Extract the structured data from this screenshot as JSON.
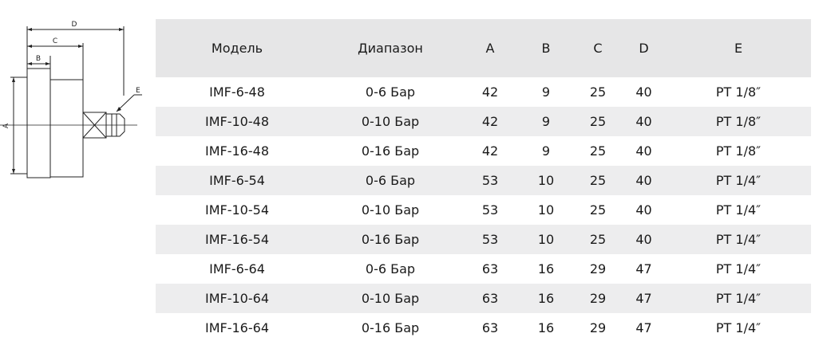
{
  "drawing": {
    "labels": {
      "a": "A",
      "b": "B",
      "c": "C",
      "d": "D",
      "e": "E"
    }
  },
  "table": {
    "headers": [
      "Модель",
      "Диапазон",
      "A",
      "B",
      "C",
      "D",
      "E"
    ],
    "rows": [
      [
        "IMF-6-48",
        "0-6 Бар",
        "42",
        "9",
        "25",
        "40",
        "PT 1/8″"
      ],
      [
        "IMF-10-48",
        "0-10 Бар",
        "42",
        "9",
        "25",
        "40",
        "PT 1/8″"
      ],
      [
        "IMF-16-48",
        "0-16 Бар",
        "42",
        "9",
        "25",
        "40",
        "PT 1/8″"
      ],
      [
        "IMF-6-54",
        "0-6 Бар",
        "53",
        "10",
        "25",
        "40",
        "PT 1/4″"
      ],
      [
        "IMF-10-54",
        "0-10 Бар",
        "53",
        "10",
        "25",
        "40",
        "PT 1/4″"
      ],
      [
        "IMF-16-54",
        "0-16 Бар",
        "53",
        "10",
        "25",
        "40",
        "PT 1/4″"
      ],
      [
        "IMF-6-64",
        "0-6 Бар",
        "63",
        "16",
        "29",
        "47",
        "PT 1/4″"
      ],
      [
        "IMF-10-64",
        "0-10 Бар",
        "63",
        "16",
        "29",
        "47",
        "PT 1/4″"
      ],
      [
        "IMF-16-64",
        "0-16 Бар",
        "63",
        "16",
        "29",
        "47",
        "PT 1/4″"
      ]
    ]
  }
}
